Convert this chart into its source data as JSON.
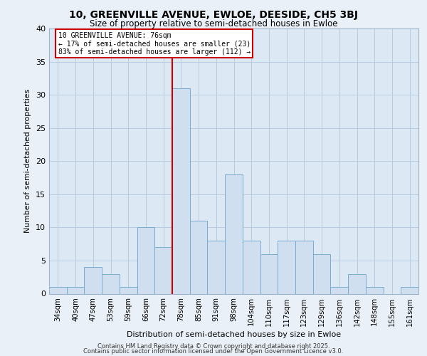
{
  "title1": "10, GREENVILLE AVENUE, EWLOE, DEESIDE, CH5 3BJ",
  "title2": "Size of property relative to semi-detached houses in Ewloe",
  "xlabel": "Distribution of semi-detached houses by size in Ewloe",
  "ylabel": "Number of semi-detached properties",
  "categories": [
    "34sqm",
    "40sqm",
    "47sqm",
    "53sqm",
    "59sqm",
    "66sqm",
    "72sqm",
    "78sqm",
    "85sqm",
    "91sqm",
    "98sqm",
    "104sqm",
    "110sqm",
    "117sqm",
    "123sqm",
    "129sqm",
    "136sqm",
    "142sqm",
    "148sqm",
    "155sqm",
    "161sqm"
  ],
  "values": [
    1,
    1,
    4,
    3,
    1,
    10,
    7,
    31,
    11,
    8,
    18,
    8,
    6,
    8,
    8,
    6,
    1,
    3,
    1,
    0,
    1
  ],
  "bar_color": "#cfdff0",
  "bar_edge_color": "#7aacce",
  "vline_color": "#cc0000",
  "annotation_box_color": "#cc0000",
  "annotation_label": "10 GREENVILLE AVENUE: 76sqm",
  "smaller_pct": "17%",
  "smaller_n": 23,
  "larger_pct": "83%",
  "larger_n": 112,
  "bg_color": "#eaf0f7",
  "plot_bg_color": "#dce9f5",
  "grid_color": "#b8ccdf",
  "footer1": "Contains HM Land Registry data © Crown copyright and database right 2025.",
  "footer2": "Contains public sector information licensed under the Open Government Licence v3.0.",
  "ylim": [
    0,
    40
  ],
  "yticks": [
    0,
    5,
    10,
    15,
    20,
    25,
    30,
    35,
    40
  ]
}
